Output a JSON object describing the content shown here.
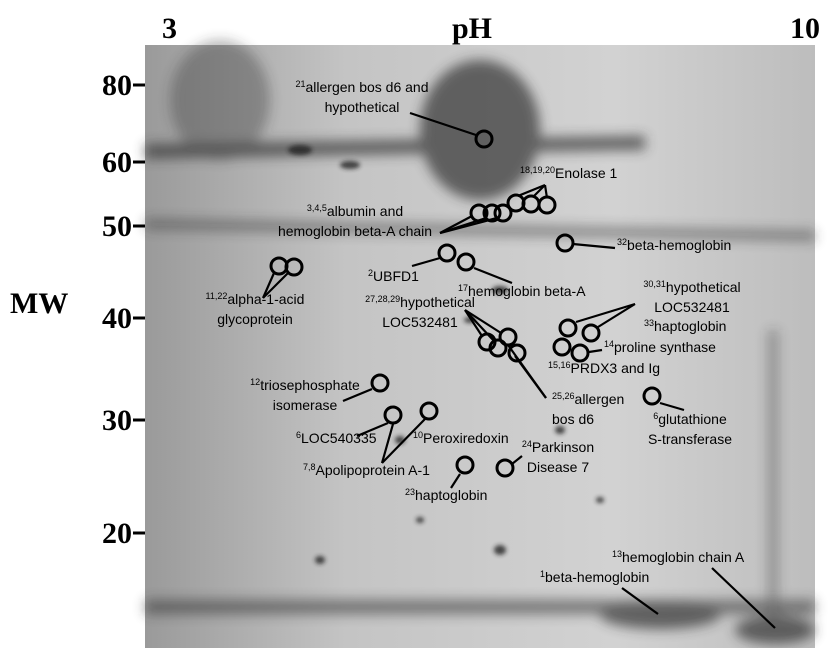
{
  "axes": {
    "x_label": "pH",
    "x_min": "3",
    "x_max": "10",
    "y_label": "MW",
    "y_ticks": [
      "80",
      "60",
      "50",
      "40",
      "30",
      "20"
    ]
  },
  "annotations": [
    {
      "ids": "21",
      "lines": [
        "allergen bos d6 and",
        "hypothetical"
      ]
    },
    {
      "ids": "18,19,20",
      "lines": [
        "Enolase 1"
      ]
    },
    {
      "ids": "3,4,5",
      "lines": [
        "albumin and",
        "hemoglobin beta-A chain"
      ]
    },
    {
      "ids": "32",
      "lines": [
        "beta-hemoglobin"
      ]
    },
    {
      "ids": "2",
      "lines": [
        "UBFD1"
      ]
    },
    {
      "ids": "17",
      "lines": [
        "hemoglobin beta-A"
      ]
    },
    {
      "ids": "11,22",
      "lines": [
        "alpha-1-acid",
        "glycoprotein"
      ]
    },
    {
      "ids": "27,28,29",
      "lines": [
        "hypothetical",
        "LOC532481"
      ]
    },
    {
      "ids": "30,31",
      "lines": [
        "hypothetical",
        "LOC532481"
      ]
    },
    {
      "ids": "33",
      "lines": [
        "haptoglobin"
      ]
    },
    {
      "ids": "14",
      "lines": [
        "proline synthase"
      ]
    },
    {
      "ids": "15,16",
      "lines": [
        "PRDX3 and Ig"
      ]
    },
    {
      "ids": "25,26",
      "lines": [
        "allergen",
        "bos d6"
      ]
    },
    {
      "ids": "12",
      "lines": [
        "triosephosphate",
        "isomerase"
      ]
    },
    {
      "ids": "6",
      "lines": [
        "glutathione",
        "S-transferase"
      ]
    },
    {
      "ids": "6",
      "lines": [
        "LOC540335"
      ]
    },
    {
      "ids": "10",
      "lines": [
        "Peroxiredoxin"
      ]
    },
    {
      "ids": "24",
      "lines": [
        "Parkinson",
        "Disease 7"
      ]
    },
    {
      "ids": "7,8",
      "lines": [
        "Apolipoprotein A-1"
      ]
    },
    {
      "ids": "23",
      "lines": [
        "haptoglobin"
      ]
    },
    {
      "ids": "13",
      "lines": [
        "hemoglobin chain A"
      ]
    },
    {
      "ids": "1",
      "lines": [
        "beta-hemoglobin"
      ]
    }
  ]
}
